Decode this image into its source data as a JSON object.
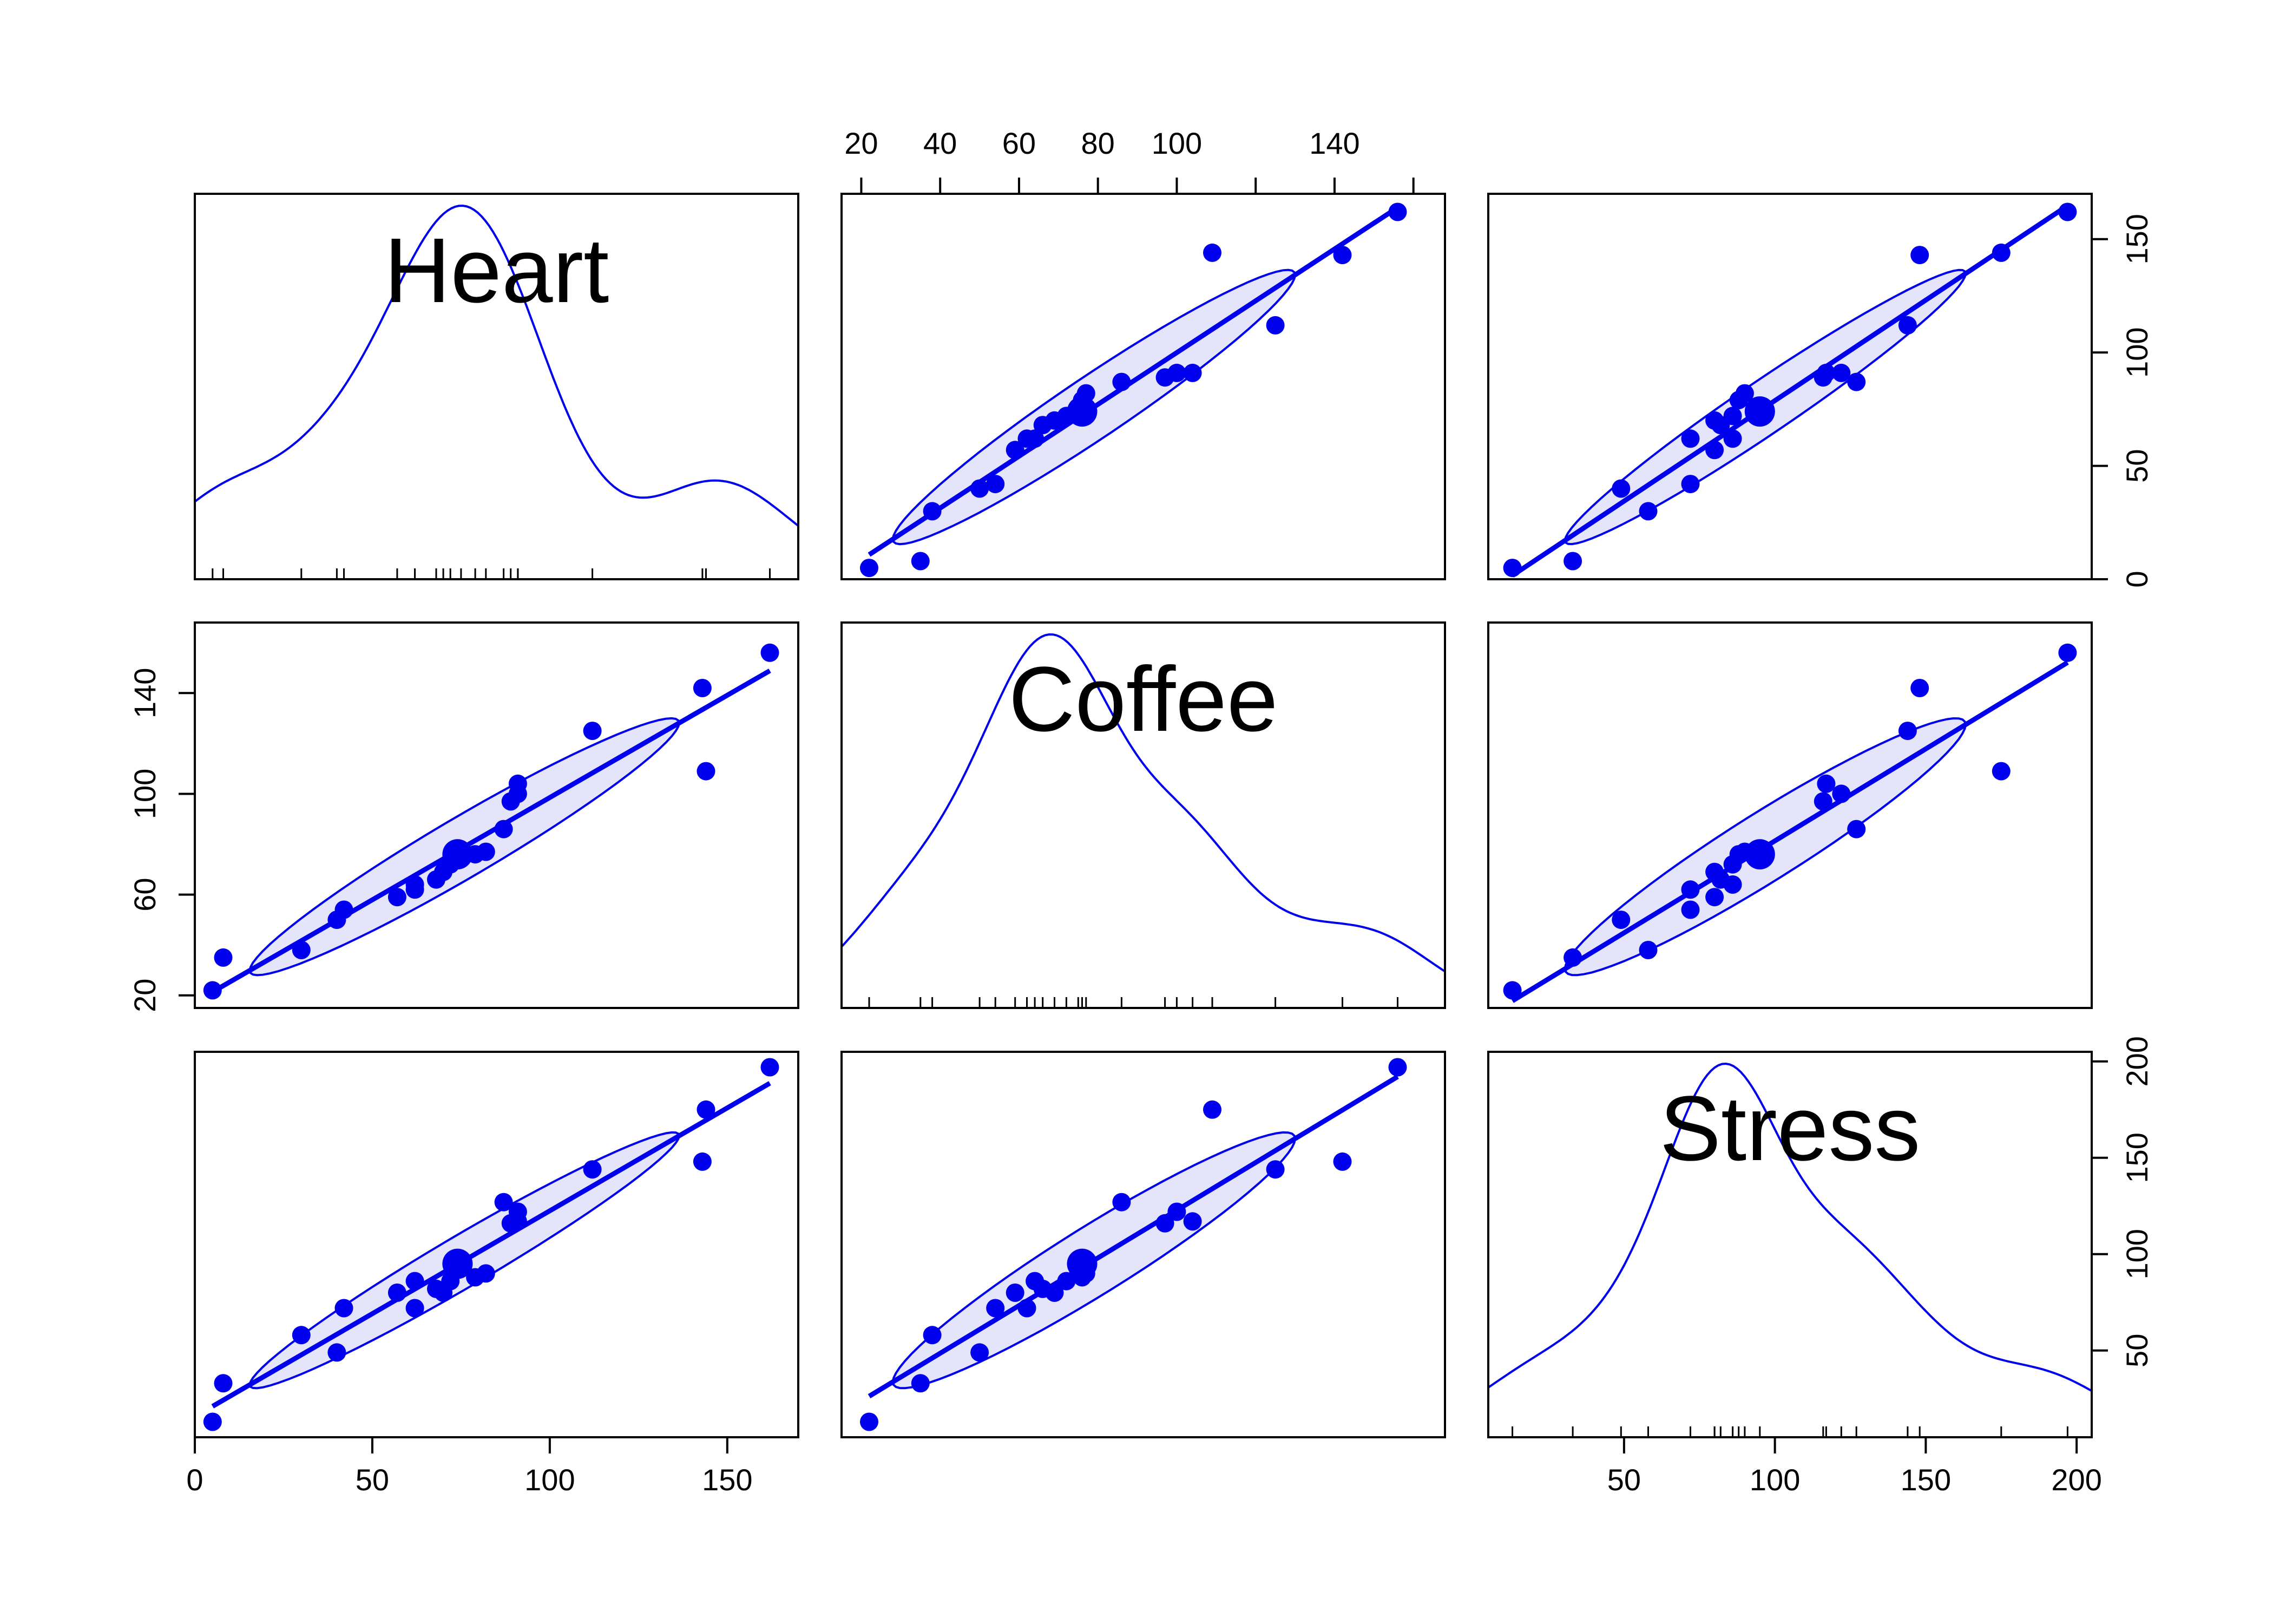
{
  "chart_data": {
    "type": "scatter",
    "variables": [
      "Heart",
      "Coffee",
      "Stress"
    ],
    "colors": {
      "points": "#0000ee",
      "ellipse_fill": "#e4e4fa",
      "frame": "#000000",
      "text": "#000000"
    },
    "elements": [
      "points",
      "regression-line",
      "data-ellipse",
      "density-curve",
      "rug"
    ],
    "ranges": {
      "Heart": [
        0,
        170
      ],
      "Coffee": [
        15,
        168
      ],
      "Stress": [
        5,
        205
      ]
    },
    "ticks": {
      "Heart": [
        "0",
        "50",
        "100",
        "150"
      ],
      "Coffee": [
        "20",
        "40",
        "60",
        "80",
        "100",
        "140"
      ],
      "Stress": [
        "50",
        "100",
        "150",
        "200"
      ]
    },
    "minor_ticks": {
      "Coffee": [
        "120",
        "160"
      ]
    },
    "heart_ticks_right": [
      "0",
      "50",
      "100",
      "150"
    ],
    "coffee_ticks_left": [
      "20",
      "60",
      "100",
      "140"
    ],
    "data": {
      "Heart": [
        5,
        8,
        30,
        40,
        42,
        57,
        62,
        62,
        68,
        70,
        72,
        75,
        79,
        82,
        87,
        89,
        91,
        91,
        112,
        143,
        144,
        162
      ],
      "Coffee": [
        22,
        35,
        38,
        50,
        54,
        59,
        62,
        64,
        66,
        69,
        72,
        75,
        76,
        77,
        86,
        97,
        100,
        104,
        125,
        142,
        109,
        156
      ],
      "Stress": [
        13,
        33,
        58,
        49,
        72,
        80,
        72,
        86,
        82,
        80,
        86,
        95,
        88,
        90,
        127,
        116,
        122,
        117,
        144,
        148,
        175,
        197
      ]
    },
    "center": {
      "Heart": 74,
      "Coffee": 76,
      "Stress": 95
    }
  }
}
